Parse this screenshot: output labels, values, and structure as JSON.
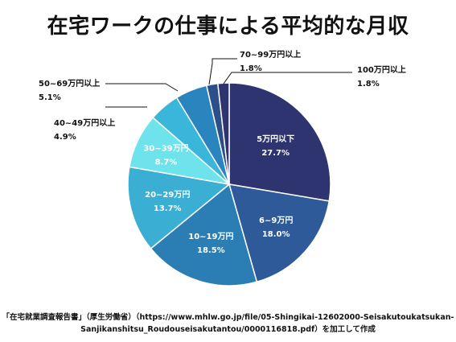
{
  "chart_data": {
    "type": "pie",
    "title": "在宅ワークの仕事による平均的な月収",
    "slices": [
      {
        "label": "5万円以下",
        "value": 27.7,
        "value_label": "27.7%",
        "color": "#2e3470"
      },
      {
        "label": "6~9万円",
        "value": 18.0,
        "value_label": "18.0%",
        "color": "#2e5a9a"
      },
      {
        "label": "10~19万円",
        "value": 18.5,
        "value_label": "18.5%",
        "color": "#2a7eb4"
      },
      {
        "label": "20~29万円",
        "value": 13.7,
        "value_label": "13.7%",
        "color": "#3aaed3"
      },
      {
        "label": "30~39万円",
        "value": 8.7,
        "value_label": "8.7%",
        "color": "#6fe3ec"
      },
      {
        "label": "40~49万円以上",
        "value": 4.9,
        "value_label": "4.9%",
        "color": "#3bb6db"
      },
      {
        "label": "50~69万円以上",
        "value": 5.1,
        "value_label": "5.1%",
        "color": "#2a84bd"
      },
      {
        "label": "70~99万円以上",
        "value": 1.8,
        "value_label": "1.8%",
        "color": "#2c4f8a"
      },
      {
        "label": "100万円以上",
        "value": 1.8,
        "value_label": "1.8%",
        "color": "#2e3470"
      }
    ]
  },
  "source": {
    "line1": "「在宅就業調査報告書」（厚生労働省）（https://www.mhlw.go.jp/file/05-Shingikai-12602000-Seisakutoukatsukan-",
    "line2": "Sanjikanshitsu_Roudouseisakutantou/0000116818.pdf）を加工して作成"
  }
}
